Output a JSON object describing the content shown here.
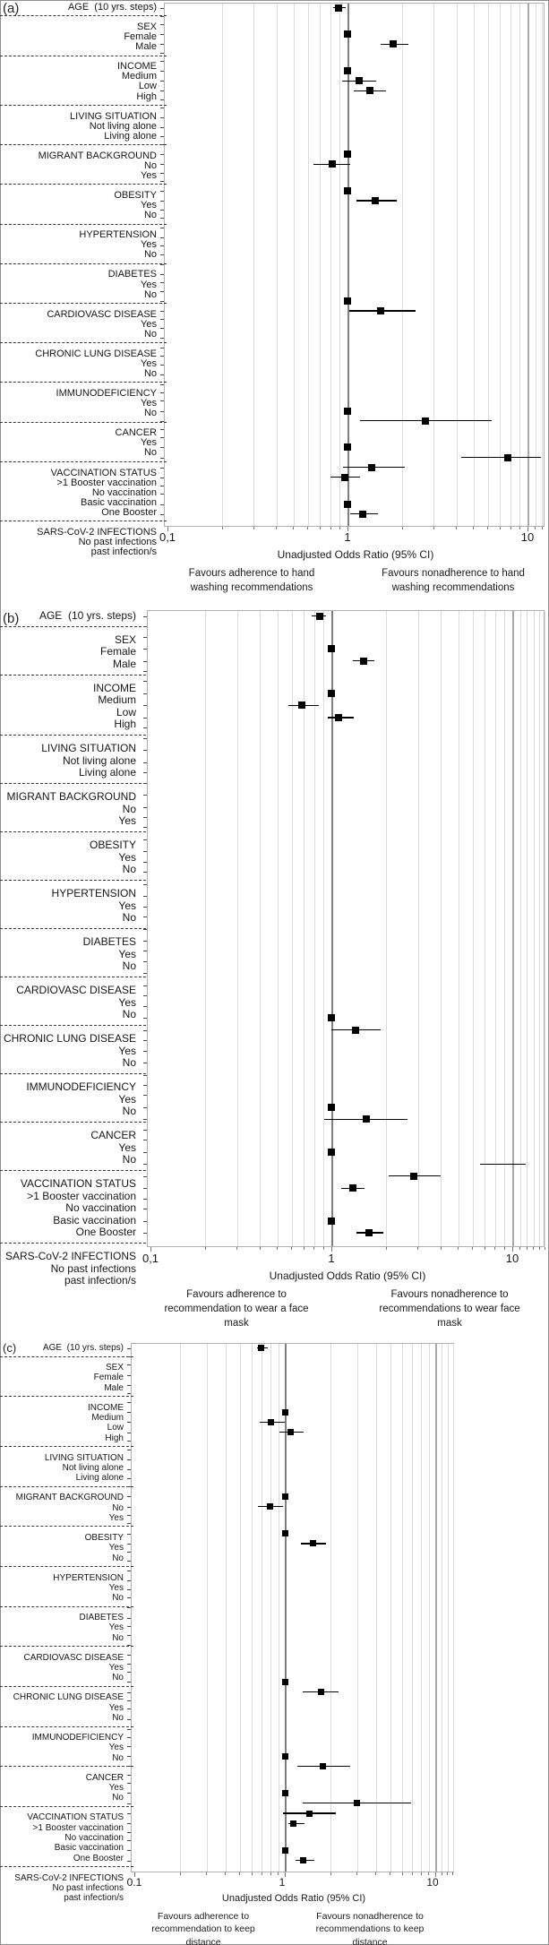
{
  "figure": {
    "description_visible_text_only": true
  },
  "chart_data": {
    "type": "scatter",
    "subtype": "forest-plot-three-panels",
    "x_scale": "log10",
    "grid": "on",
    "marker": "black-square-with-95ci-line",
    "reference_line_at": 1,
    "colors": {
      "marker": "#000000",
      "reference_line": "#7f7f7f",
      "gridline": "#dcdcdc",
      "frame": "#b0b0b0"
    },
    "panels": [
      {
        "tag": "(a)",
        "axis_title": "Unadjusted Odds Ratio (95% CI)",
        "tick_labels": [
          "0,1",
          "1",
          "10"
        ],
        "tick_values": [
          0.1,
          1,
          10
        ],
        "x_range": [
          0.1,
          12.4
        ],
        "favours_left": "Favours adherence to hand washing recommendations",
        "favours_right": "Favours nonadherence to hand washing recommendations",
        "rows": [
          {
            "label": "AGE  (10 yrs. steps)",
            "header": true,
            "or": 0.89,
            "ci": [
              0.83,
              0.98
            ]
          },
          {
            "sep": true
          },
          {
            "label": "SEX",
            "header": true
          },
          {
            "label": "Female",
            "or": 1.0,
            "ref": true
          },
          {
            "label": "Male",
            "or": 1.79,
            "ci": [
              1.53,
              2.18
            ]
          },
          {
            "sep": true
          },
          {
            "label": "INCOME",
            "header": true
          },
          {
            "label": "Medium",
            "or": 1.0,
            "ref": true
          },
          {
            "label": "Low",
            "or": 1.16,
            "ci": [
              0.93,
              1.44
            ]
          },
          {
            "label": "High",
            "or": 1.33,
            "ci": [
              1.08,
              1.64
            ]
          },
          {
            "sep": true
          },
          {
            "label": "LIVING SITUATION",
            "header": true
          },
          {
            "label": "Not living alone"
          },
          {
            "label": "Living alone"
          },
          {
            "sep": true
          },
          {
            "label": "MIGRANT BACKGROUND",
            "header": true
          },
          {
            "label": "No",
            "or": 1.0,
            "ref": true
          },
          {
            "label": "Yes",
            "or": 0.82,
            "ci": [
              0.65,
              1.03
            ]
          },
          {
            "sep": true
          },
          {
            "label": "OBESITY",
            "header": true
          },
          {
            "label": "Yes",
            "or": 1.0,
            "ref": true
          },
          {
            "label": "No",
            "or": 1.42,
            "ci": [
              1.12,
              1.87
            ]
          },
          {
            "sep": true
          },
          {
            "label": "HYPERTENSION",
            "header": true
          },
          {
            "label": "Yes"
          },
          {
            "label": "No"
          },
          {
            "sep": true
          },
          {
            "label": "DIABETES",
            "header": true
          },
          {
            "label": "Yes"
          },
          {
            "label": "No"
          },
          {
            "sep": true
          },
          {
            "label": "CARDIOVASC DISEASE",
            "header": true
          },
          {
            "label": "Yes",
            "or": 1.0,
            "ref": true
          },
          {
            "label": "No",
            "or": 1.52,
            "ci": [
              1.02,
              2.39
            ]
          },
          {
            "sep": true
          },
          {
            "label": "CHRONIC LUNG DISEASE",
            "header": true
          },
          {
            "label": "Yes"
          },
          {
            "label": "No"
          },
          {
            "sep": true
          },
          {
            "label": "IMMUNODEFICIENCY",
            "header": true
          },
          {
            "label": "Yes"
          },
          {
            "label": "No"
          },
          {
            "sep": true
          },
          {
            "label": "CANCER",
            "header": true
          },
          {
            "label": "Yes",
            "or": 1.0,
            "ref": true
          },
          {
            "label": "No",
            "or": 2.7,
            "ci": [
              1.17,
              6.3
            ]
          },
          {
            "sep": true
          },
          {
            "label": "VACCINATION STATUS",
            "header": true
          },
          {
            "label": ">1 Booster vaccination",
            "or": 1.0,
            "ref": true
          },
          {
            "label": "No vaccination",
            "or": 7.8,
            "ci": [
              4.3,
              11.9
            ]
          },
          {
            "label": "Basic vaccination",
            "or": 1.37,
            "ci": [
              0.94,
              2.08
            ]
          },
          {
            "label": "One Booster",
            "or": 0.97,
            "ci": [
              0.8,
              1.17
            ]
          },
          {
            "sep": true
          },
          {
            "label": "SARS-CoV-2 INFECTIONS",
            "header": true
          },
          {
            "label": "No past infections",
            "or": 1.0,
            "ref": true
          },
          {
            "label": "past infection/s",
            "or": 1.22,
            "ci": [
              1.04,
              1.47
            ]
          }
        ]
      },
      {
        "tag": "(b)",
        "axis_title": "Unadjusted Odds Ratio (95% CI)",
        "tick_labels": [
          "0,1",
          "1",
          "10"
        ],
        "tick_values": [
          0.1,
          1,
          10
        ],
        "x_range": [
          0.1,
          15.1
        ],
        "favours_left": "Favours adherence to recommendation to wear a face mask",
        "favours_right": "Favours nonadherence to recommendations to wear face mask",
        "rows": [
          {
            "label": "AGE  (10 yrs. steps)",
            "header": true,
            "or": 0.86,
            "ci": [
              0.78,
              0.93
            ]
          },
          {
            "sep": true
          },
          {
            "label": "SEX",
            "header": true
          },
          {
            "label": "Female",
            "or": 1.0,
            "ref": true
          },
          {
            "label": "Male",
            "or": 1.5,
            "ci": [
              1.32,
              1.73
            ]
          },
          {
            "sep": true
          },
          {
            "label": "INCOME",
            "header": true
          },
          {
            "label": "Medium",
            "or": 1.0,
            "ref": true
          },
          {
            "label": "Low",
            "or": 0.69,
            "ci": [
              0.58,
              0.85
            ]
          },
          {
            "label": "High",
            "or": 1.1,
            "ci": [
              0.95,
              1.33
            ]
          },
          {
            "sep": true
          },
          {
            "label": "LIVING SITUATION",
            "header": true
          },
          {
            "label": "Not living alone"
          },
          {
            "label": "Living alone"
          },
          {
            "sep": true
          },
          {
            "label": "MIGRANT BACKGROUND",
            "header": true
          },
          {
            "label": "No"
          },
          {
            "label": "Yes"
          },
          {
            "sep": true
          },
          {
            "label": "OBESITY",
            "header": true
          },
          {
            "label": "Yes"
          },
          {
            "label": "No"
          },
          {
            "sep": true
          },
          {
            "label": "HYPERTENSION",
            "header": true
          },
          {
            "label": "Yes"
          },
          {
            "label": "No"
          },
          {
            "sep": true
          },
          {
            "label": "DIABETES",
            "header": true
          },
          {
            "label": "Yes"
          },
          {
            "label": "No"
          },
          {
            "sep": true
          },
          {
            "label": "CARDIOVASC DISEASE",
            "header": true
          },
          {
            "label": "Yes"
          },
          {
            "label": "No"
          },
          {
            "sep": true
          },
          {
            "label": "CHRONIC LUNG DISEASE",
            "header": true
          },
          {
            "label": "Yes",
            "or": 1.0,
            "ref": true
          },
          {
            "label": "No",
            "or": 1.36,
            "ci": [
              1.0,
              1.88
            ]
          },
          {
            "sep": true
          },
          {
            "label": "IMMUNODEFICIENCY",
            "header": true
          },
          {
            "label": "Yes"
          },
          {
            "label": "No"
          },
          {
            "sep": true
          },
          {
            "label": "CANCER",
            "header": true
          },
          {
            "label": "Yes",
            "or": 1.0,
            "ref": true
          },
          {
            "label": "No",
            "or": 1.56,
            "ci": [
              0.91,
              2.63
            ]
          },
          {
            "sep": true
          },
          {
            "label": "VACCINATION STATUS",
            "header": true
          },
          {
            "label": ">1 Booster vaccination",
            "or": 1.0,
            "ref": true
          },
          {
            "label": "No vaccination",
            "or": null,
            "ci": [
              6.6,
              11.9
            ]
          },
          {
            "label": "Basic vaccination",
            "or": 2.86,
            "ci": [
              2.07,
              4.0
            ]
          },
          {
            "label": "One Booster",
            "or": 1.31,
            "ci": [
              1.13,
              1.52
            ]
          },
          {
            "sep": true
          },
          {
            "label": "SARS-CoV-2 INFECTIONS",
            "header": true
          },
          {
            "label": "No past infections",
            "or": 1.0,
            "ref": true
          },
          {
            "label": "past infection/s",
            "or": 1.62,
            "ci": [
              1.38,
              1.94
            ]
          }
        ]
      },
      {
        "tag": "(c)",
        "axis_title": "Unadjusted Odds Ratio (95% CI)",
        "tick_labels": [
          "0.1",
          "1",
          "10"
        ],
        "tick_values": [
          0.1,
          1,
          10
        ],
        "x_range": [
          0.1,
          13.3
        ],
        "favours_left": "Favours adherence to recommendation to keep distance",
        "favours_right": "Favours nonadherence to recommendations to keep distance",
        "rows": [
          {
            "label": "AGE  (10 yrs. steps)",
            "header": true,
            "or": 0.7,
            "ci": [
              0.65,
              0.77
            ]
          },
          {
            "sep": true
          },
          {
            "label": "SEX",
            "header": true
          },
          {
            "label": "Female"
          },
          {
            "label": "Male"
          },
          {
            "sep": true
          },
          {
            "label": "INCOME",
            "header": true
          },
          {
            "label": "Medium",
            "or": 1.0,
            "ref": true
          },
          {
            "label": "Low",
            "or": 0.81,
            "ci": [
              0.68,
              1.0
            ]
          },
          {
            "label": "High",
            "or": 1.1,
            "ci": [
              0.92,
              1.34
            ]
          },
          {
            "sep": true
          },
          {
            "label": "LIVING SITUATION",
            "header": true
          },
          {
            "label": "Not living alone"
          },
          {
            "label": "Living alone"
          },
          {
            "sep": true
          },
          {
            "label": "MIGRANT BACKGROUND",
            "header": true
          },
          {
            "label": "No",
            "or": 1.0,
            "ref": true
          },
          {
            "label": "Yes",
            "or": 0.8,
            "ci": [
              0.66,
              0.97
            ]
          },
          {
            "sep": true
          },
          {
            "label": "OBESITY",
            "header": true
          },
          {
            "label": "Yes",
            "or": 1.0,
            "ref": true
          },
          {
            "label": "No",
            "or": 1.55,
            "ci": [
              1.28,
              1.88
            ]
          },
          {
            "sep": true
          },
          {
            "label": "HYPERTENSION",
            "header": true
          },
          {
            "label": "Yes"
          },
          {
            "label": "No"
          },
          {
            "sep": true
          },
          {
            "label": "DIABETES",
            "header": true
          },
          {
            "label": "Yes"
          },
          {
            "label": "No"
          },
          {
            "sep": true
          },
          {
            "label": "CARDIOVASC DISEASE",
            "header": true
          },
          {
            "label": "Yes"
          },
          {
            "label": "No"
          },
          {
            "sep": true
          },
          {
            "label": "CHRONIC LUNG DISEASE",
            "header": true
          },
          {
            "label": "Yes",
            "or": 1.0,
            "ref": true
          },
          {
            "label": "No",
            "or": 1.74,
            "ci": [
              1.32,
              2.29
            ]
          },
          {
            "sep": true
          },
          {
            "label": "IMMUNODEFICIENCY",
            "header": true
          },
          {
            "label": "Yes"
          },
          {
            "label": "No"
          },
          {
            "sep": true
          },
          {
            "label": "CANCER",
            "header": true
          },
          {
            "label": "Yes",
            "or": 1.0,
            "ref": true
          },
          {
            "label": "No",
            "or": 1.79,
            "ci": [
              1.21,
              2.73
            ]
          },
          {
            "sep": true
          },
          {
            "label": "VACCINATION STATUS",
            "header": true
          },
          {
            "label": ">1 Booster vaccination",
            "or": 1.0,
            "ref": true
          },
          {
            "label": "No vaccination",
            "or": 3.0,
            "ci": [
              1.32,
              6.9
            ]
          },
          {
            "label": "Basic vaccination",
            "or": 1.45,
            "ci": [
              0.97,
              2.18
            ]
          },
          {
            "label": "One Booster",
            "or": 1.14,
            "ci": [
              1.05,
              1.36
            ]
          },
          {
            "sep": true
          },
          {
            "label": "SARS-CoV-2 INFECTIONS",
            "header": true
          },
          {
            "label": "No past infections",
            "or": 1.0,
            "ref": true
          },
          {
            "label": "past infection/s",
            "or": 1.32,
            "ci": [
              1.18,
              1.57
            ]
          }
        ]
      }
    ]
  }
}
